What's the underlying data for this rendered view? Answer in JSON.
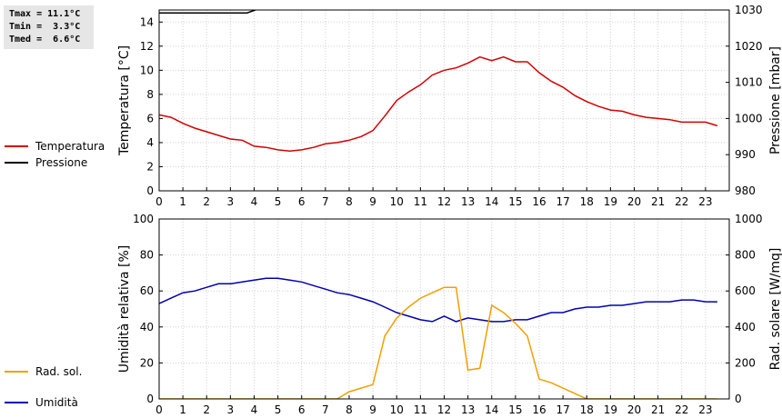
{
  "stats": {
    "tmax": "Tmax = 11.1°C",
    "tmin": "Tmin =  3.3°C",
    "tmed": "Tmed =  6.6°C"
  },
  "chart_data": [
    {
      "type": "line",
      "ylabel": "Temperatura [°C]",
      "y2label": "Pressione [mbar]",
      "xlim": [
        0,
        24
      ],
      "ylim": [
        0,
        15
      ],
      "y2lim": [
        980,
        1030
      ],
      "x_ticks": [
        "0",
        "1",
        "2",
        "3",
        "4",
        "5",
        "6",
        "7",
        "8",
        "9",
        "10",
        "11",
        "12",
        "13",
        "14",
        "15",
        "16",
        "17",
        "18",
        "19",
        "20",
        "21",
        "22",
        "23"
      ],
      "y_ticks": [
        "0",
        "2",
        "4",
        "6",
        "8",
        "10",
        "12",
        "14"
      ],
      "y2_ticks": [
        "980",
        "990",
        "1000",
        "1010",
        "1020",
        "1030"
      ],
      "grid": true,
      "legend_position": "left",
      "series": [
        {
          "name": "Temperatura",
          "color": "#d40000",
          "axis": "left",
          "x": [
            0,
            0.5,
            1,
            1.5,
            2,
            2.5,
            3,
            3.5,
            4,
            4.5,
            5,
            5.5,
            6,
            6.5,
            7,
            7.5,
            8,
            8.5,
            9,
            9.5,
            10,
            10.5,
            11,
            11.5,
            12,
            12.5,
            13,
            13.5,
            14,
            14.5,
            15,
            15.5,
            16,
            16.5,
            17,
            17.5,
            18,
            18.5,
            19,
            19.5,
            20,
            20.5,
            21,
            21.5,
            22,
            22.5,
            23,
            23.5
          ],
          "y": [
            6.3,
            6.1,
            5.6,
            5.2,
            4.9,
            4.6,
            4.3,
            4.2,
            3.7,
            3.6,
            3.4,
            3.3,
            3.4,
            3.6,
            3.9,
            4.0,
            4.2,
            4.5,
            5.0,
            6.2,
            7.5,
            8.2,
            8.8,
            9.6,
            10.0,
            10.2,
            10.6,
            11.1,
            10.8,
            11.1,
            10.7,
            10.7,
            9.8,
            9.1,
            8.6,
            7.9,
            7.4,
            7.0,
            6.7,
            6.6,
            6.3,
            6.1,
            6.0,
            5.9,
            5.7,
            5.7,
            5.7,
            5.4
          ]
        },
        {
          "name": "Pressione",
          "color": "#000000",
          "axis": "right",
          "x": [
            0,
            3.7,
            4.05
          ],
          "y": [
            1029.2,
            1029.2,
            1030
          ]
        }
      ]
    },
    {
      "type": "line",
      "ylabel": "Umidità relativa [%]",
      "y2label": "Rad. solare [W/mq]",
      "xlim": [
        0,
        24
      ],
      "ylim": [
        0,
        100
      ],
      "y2lim": [
        0,
        1000
      ],
      "x_ticks": [
        "0",
        "1",
        "2",
        "3",
        "4",
        "5",
        "6",
        "7",
        "8",
        "9",
        "10",
        "11",
        "12",
        "13",
        "14",
        "15",
        "16",
        "17",
        "18",
        "19",
        "20",
        "21",
        "22",
        "23"
      ],
      "y_ticks": [
        "0",
        "20",
        "40",
        "60",
        "80",
        "100"
      ],
      "y2_ticks": [
        "0",
        "200",
        "400",
        "600",
        "800",
        "1000"
      ],
      "grid": true,
      "legend_position": "left",
      "series": [
        {
          "name": "Umidità",
          "color": "#0000b0",
          "axis": "left",
          "x": [
            0,
            0.5,
            1,
            1.5,
            2,
            2.5,
            3,
            3.5,
            4,
            4.5,
            5,
            5.5,
            6,
            6.5,
            7,
            7.5,
            8,
            8.5,
            9,
            9.5,
            10,
            10.5,
            11,
            11.5,
            12,
            12.5,
            13,
            13.5,
            14,
            14.5,
            15,
            15.5,
            16,
            16.5,
            17,
            17.5,
            18,
            18.5,
            19,
            19.5,
            20,
            20.5,
            21,
            21.5,
            22,
            22.5,
            23,
            23.5
          ],
          "y": [
            53,
            56,
            59,
            60,
            62,
            64,
            64,
            65,
            66,
            67,
            67,
            66,
            65,
            63,
            61,
            59,
            58,
            56,
            54,
            51,
            48,
            46,
            44,
            43,
            46,
            43,
            45,
            44,
            43,
            43,
            44,
            44,
            46,
            48,
            48,
            50,
            51,
            51,
            52,
            52,
            53,
            54,
            54,
            54,
            55,
            55,
            54,
            54
          ]
        },
        {
          "name": "Rad. sol.",
          "color": "#f0a000",
          "axis": "right",
          "x": [
            0,
            7.5,
            8,
            8.5,
            9,
            9.5,
            10,
            10.5,
            11,
            11.5,
            12,
            12.5,
            13,
            13.5,
            14,
            14.5,
            15,
            15.5,
            16,
            16.5,
            17,
            17.5,
            18,
            18.5,
            19,
            20,
            21,
            22,
            23,
            23.5
          ],
          "y": [
            0,
            0,
            40,
            60,
            80,
            350,
            450,
            510,
            560,
            590,
            620,
            620,
            160,
            170,
            520,
            480,
            420,
            350,
            110,
            90,
            60,
            30,
            0,
            0,
            0,
            0,
            0,
            0,
            0,
            0
          ]
        }
      ]
    }
  ]
}
